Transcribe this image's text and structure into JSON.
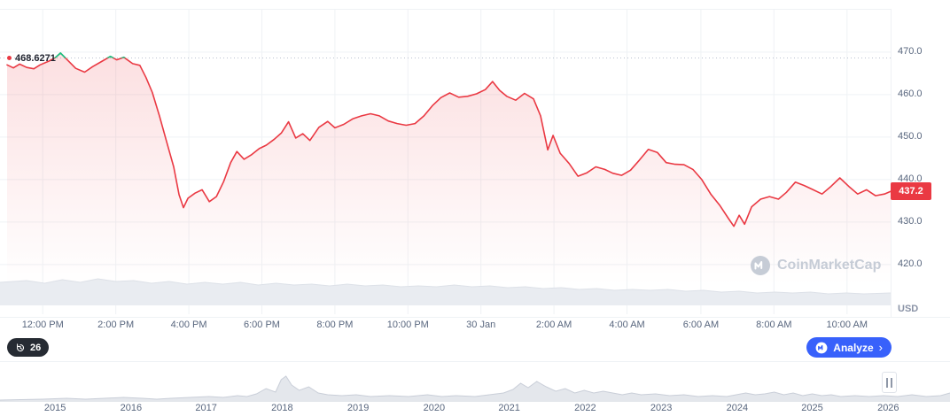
{
  "chart_data": {
    "type": "line",
    "title": "Intraday price chart with range navigator",
    "unit": "USD",
    "ylim": [
      408.3,
      480.2
    ],
    "grid": true,
    "legend": "none",
    "y_ticks": [
      {
        "label": "470.0",
        "v": 470
      },
      {
        "label": "460.0",
        "v": 460
      },
      {
        "label": "450.0",
        "v": 450
      },
      {
        "label": "440.0",
        "v": 440
      },
      {
        "label": "430.0",
        "v": 430
      },
      {
        "label": "420.0",
        "v": 420
      }
    ],
    "x_ticks": [
      {
        "label": "12:00 PM",
        "f": 0.048
      },
      {
        "label": "2:00 PM",
        "f": 0.13
      },
      {
        "label": "4:00 PM",
        "f": 0.212
      },
      {
        "label": "6:00 PM",
        "f": 0.294
      },
      {
        "label": "8:00 PM",
        "f": 0.376
      },
      {
        "label": "10:00 PM",
        "f": 0.458
      },
      {
        "label": "30 Jan",
        "f": 0.54
      },
      {
        "label": "2:00 AM",
        "f": 0.622
      },
      {
        "label": "4:00 AM",
        "f": 0.704
      },
      {
        "label": "6:00 AM",
        "f": 0.787
      },
      {
        "label": "8:00 AM",
        "f": 0.869
      },
      {
        "label": "10:00 AM",
        "f": 0.951
      }
    ],
    "year_ticks": [
      {
        "label": "2015",
        "f": 0.058
      },
      {
        "label": "2016",
        "f": 0.138
      },
      {
        "label": "2017",
        "f": 0.217
      },
      {
        "label": "2018",
        "f": 0.297
      },
      {
        "label": "2019",
        "f": 0.377
      },
      {
        "label": "2020",
        "f": 0.457
      },
      {
        "label": "2021",
        "f": 0.536
      },
      {
        "label": "2022",
        "f": 0.616
      },
      {
        "label": "2023",
        "f": 0.696
      },
      {
        "label": "2024",
        "f": 0.776
      },
      {
        "label": "2025",
        "f": 0.855
      },
      {
        "label": "2026",
        "f": 0.935
      }
    ],
    "reference": {
      "label": "468.6271",
      "value": 468.6271
    },
    "last_price": {
      "label": "437.2",
      "value": 437.2
    },
    "series": [
      {
        "name": "price",
        "points": [
          [
            0.008,
            467.0
          ],
          [
            0.015,
            466.3
          ],
          [
            0.022,
            467.2
          ],
          [
            0.03,
            466.4
          ],
          [
            0.038,
            466.1
          ],
          [
            0.045,
            467.0
          ],
          [
            0.055,
            467.9
          ],
          [
            0.062,
            468.7
          ],
          [
            0.068,
            469.8
          ],
          [
            0.075,
            468.3
          ],
          [
            0.085,
            466.2
          ],
          [
            0.095,
            465.3
          ],
          [
            0.104,
            466.6
          ],
          [
            0.114,
            467.8
          ],
          [
            0.124,
            469.0
          ],
          [
            0.131,
            468.2
          ],
          [
            0.139,
            468.8
          ],
          [
            0.149,
            467.3
          ],
          [
            0.157,
            466.9
          ],
          [
            0.164,
            464.0
          ],
          [
            0.171,
            460.5
          ],
          [
            0.179,
            455.0
          ],
          [
            0.187,
            449.0
          ],
          [
            0.195,
            443.0
          ],
          [
            0.201,
            436.5
          ],
          [
            0.206,
            433.4
          ],
          [
            0.211,
            435.6
          ],
          [
            0.219,
            436.8
          ],
          [
            0.227,
            437.6
          ],
          [
            0.235,
            434.8
          ],
          [
            0.243,
            436.0
          ],
          [
            0.251,
            439.5
          ],
          [
            0.259,
            444.0
          ],
          [
            0.266,
            446.6
          ],
          [
            0.274,
            444.8
          ],
          [
            0.282,
            445.8
          ],
          [
            0.291,
            447.3
          ],
          [
            0.299,
            448.1
          ],
          [
            0.308,
            449.5
          ],
          [
            0.316,
            451.0
          ],
          [
            0.324,
            453.6
          ],
          [
            0.332,
            449.8
          ],
          [
            0.34,
            450.8
          ],
          [
            0.348,
            449.2
          ],
          [
            0.358,
            452.3
          ],
          [
            0.368,
            453.7
          ],
          [
            0.376,
            452.2
          ],
          [
            0.386,
            453.0
          ],
          [
            0.396,
            454.3
          ],
          [
            0.406,
            455.0
          ],
          [
            0.416,
            455.5
          ],
          [
            0.426,
            455.0
          ],
          [
            0.436,
            453.8
          ],
          [
            0.446,
            453.2
          ],
          [
            0.456,
            452.8
          ],
          [
            0.466,
            453.2
          ],
          [
            0.476,
            455.0
          ],
          [
            0.486,
            457.5
          ],
          [
            0.495,
            459.3
          ],
          [
            0.505,
            460.4
          ],
          [
            0.515,
            459.4
          ],
          [
            0.525,
            459.6
          ],
          [
            0.535,
            460.2
          ],
          [
            0.545,
            461.2
          ],
          [
            0.553,
            463.1
          ],
          [
            0.561,
            461.0
          ],
          [
            0.569,
            459.6
          ],
          [
            0.579,
            458.7
          ],
          [
            0.589,
            460.3
          ],
          [
            0.599,
            459.0
          ],
          [
            0.607,
            455.0
          ],
          [
            0.615,
            447.0
          ],
          [
            0.621,
            450.4
          ],
          [
            0.629,
            446.2
          ],
          [
            0.639,
            443.8
          ],
          [
            0.649,
            440.8
          ],
          [
            0.659,
            441.6
          ],
          [
            0.669,
            443.0
          ],
          [
            0.679,
            442.4
          ],
          [
            0.688,
            441.5
          ],
          [
            0.698,
            441.0
          ],
          [
            0.708,
            442.2
          ],
          [
            0.718,
            444.6
          ],
          [
            0.728,
            447.1
          ],
          [
            0.738,
            446.4
          ],
          [
            0.748,
            444.0
          ],
          [
            0.758,
            443.6
          ],
          [
            0.768,
            443.5
          ],
          [
            0.778,
            442.4
          ],
          [
            0.788,
            440.0
          ],
          [
            0.798,
            436.6
          ],
          [
            0.808,
            434.0
          ],
          [
            0.818,
            430.8
          ],
          [
            0.824,
            429.0
          ],
          [
            0.83,
            431.6
          ],
          [
            0.836,
            429.5
          ],
          [
            0.844,
            433.6
          ],
          [
            0.854,
            435.4
          ],
          [
            0.864,
            436.0
          ],
          [
            0.874,
            435.4
          ],
          [
            0.883,
            437.0
          ],
          [
            0.893,
            439.4
          ],
          [
            0.903,
            438.6
          ],
          [
            0.913,
            437.6
          ],
          [
            0.923,
            436.6
          ],
          [
            0.933,
            438.4
          ],
          [
            0.943,
            440.4
          ],
          [
            0.953,
            438.4
          ],
          [
            0.963,
            436.6
          ],
          [
            0.973,
            437.6
          ],
          [
            0.983,
            436.2
          ],
          [
            0.993,
            436.6
          ],
          [
            1.0,
            437.2
          ]
        ]
      }
    ],
    "volume_profile": [
      [
        0,
        26
      ],
      [
        0.03,
        28
      ],
      [
        0.05,
        25
      ],
      [
        0.07,
        29
      ],
      [
        0.09,
        26
      ],
      [
        0.11,
        30
      ],
      [
        0.13,
        27
      ],
      [
        0.15,
        28
      ],
      [
        0.17,
        25
      ],
      [
        0.19,
        27
      ],
      [
        0.21,
        24
      ],
      [
        0.23,
        26
      ],
      [
        0.25,
        24
      ],
      [
        0.27,
        26
      ],
      [
        0.29,
        23
      ],
      [
        0.31,
        25
      ],
      [
        0.33,
        23
      ],
      [
        0.35,
        24
      ],
      [
        0.37,
        22
      ],
      [
        0.39,
        24
      ],
      [
        0.41,
        22
      ],
      [
        0.43,
        23
      ],
      [
        0.45,
        21
      ],
      [
        0.47,
        22
      ],
      [
        0.49,
        21
      ],
      [
        0.51,
        23
      ],
      [
        0.53,
        21
      ],
      [
        0.55,
        22
      ],
      [
        0.57,
        20
      ],
      [
        0.59,
        21
      ],
      [
        0.61,
        19
      ],
      [
        0.63,
        20
      ],
      [
        0.65,
        18
      ],
      [
        0.67,
        19
      ],
      [
        0.69,
        17
      ],
      [
        0.71,
        18
      ],
      [
        0.73,
        17
      ],
      [
        0.75,
        18
      ],
      [
        0.77,
        16
      ],
      [
        0.79,
        17
      ],
      [
        0.81,
        15
      ],
      [
        0.83,
        16
      ],
      [
        0.85,
        14
      ],
      [
        0.87,
        15
      ],
      [
        0.89,
        14
      ],
      [
        0.91,
        15
      ],
      [
        0.93,
        13
      ],
      [
        0.95,
        14
      ],
      [
        0.97,
        13
      ],
      [
        1.0,
        14
      ]
    ],
    "navigator_profile": [
      [
        0,
        1
      ],
      [
        0.045,
        2
      ],
      [
        0.07,
        3
      ],
      [
        0.09,
        2
      ],
      [
        0.11,
        3
      ],
      [
        0.13,
        4
      ],
      [
        0.15,
        3
      ],
      [
        0.165,
        2
      ],
      [
        0.18,
        3
      ],
      [
        0.2,
        4
      ],
      [
        0.22,
        5
      ],
      [
        0.235,
        4
      ],
      [
        0.25,
        6
      ],
      [
        0.26,
        5
      ],
      [
        0.27,
        8
      ],
      [
        0.28,
        14
      ],
      [
        0.29,
        10
      ],
      [
        0.296,
        24
      ],
      [
        0.301,
        28
      ],
      [
        0.307,
        18
      ],
      [
        0.315,
        12
      ],
      [
        0.325,
        16
      ],
      [
        0.335,
        9
      ],
      [
        0.345,
        7
      ],
      [
        0.36,
        6
      ],
      [
        0.375,
        7
      ],
      [
        0.39,
        5
      ],
      [
        0.41,
        6
      ],
      [
        0.43,
        5
      ],
      [
        0.45,
        7
      ],
      [
        0.465,
        5
      ],
      [
        0.48,
        6
      ],
      [
        0.5,
        5
      ],
      [
        0.515,
        7
      ],
      [
        0.53,
        9
      ],
      [
        0.54,
        13
      ],
      [
        0.548,
        20
      ],
      [
        0.556,
        15
      ],
      [
        0.565,
        22
      ],
      [
        0.575,
        16
      ],
      [
        0.585,
        11
      ],
      [
        0.595,
        14
      ],
      [
        0.605,
        9
      ],
      [
        0.615,
        12
      ],
      [
        0.625,
        9
      ],
      [
        0.635,
        11
      ],
      [
        0.645,
        9
      ],
      [
        0.655,
        7
      ],
      [
        0.665,
        9
      ],
      [
        0.675,
        7
      ],
      [
        0.69,
        8
      ],
      [
        0.705,
        6
      ],
      [
        0.72,
        7
      ],
      [
        0.735,
        5
      ],
      [
        0.75,
        6
      ],
      [
        0.765,
        5
      ],
      [
        0.775,
        7
      ],
      [
        0.785,
        9
      ],
      [
        0.795,
        7
      ],
      [
        0.805,
        8
      ],
      [
        0.815,
        10
      ],
      [
        0.825,
        7
      ],
      [
        0.835,
        9
      ],
      [
        0.845,
        6
      ],
      [
        0.855,
        8
      ],
      [
        0.865,
        6
      ],
      [
        0.875,
        7
      ],
      [
        0.885,
        5
      ],
      [
        0.9,
        6
      ],
      [
        0.915,
        5
      ],
      [
        0.93,
        6
      ],
      [
        0.945,
        5
      ],
      [
        0.96,
        7
      ],
      [
        0.975,
        5
      ],
      [
        0.99,
        6
      ],
      [
        1.0,
        9
      ]
    ]
  },
  "axis": {
    "unit_label": "USD"
  },
  "watermark": {
    "text": "CoinMarketCap"
  },
  "controls": {
    "history_count": "26",
    "analyze_label": "Analyze",
    "analyze_chevron": "›"
  },
  "colors": {
    "down": "#ea3943",
    "up": "#16c784",
    "accent_blue": "#3861fb",
    "grid": "#eff2f5",
    "axis_text": "#58667e",
    "volume_fill": "#e9ecf1",
    "volume_edge": "#dde1e8",
    "navigator_fill": "#e4e7ec",
    "navigator_edge": "#c9ced8",
    "badge_bg": "#262b33",
    "watermark": "#c6ccd6",
    "reference_line": "#b9c1d0"
  }
}
